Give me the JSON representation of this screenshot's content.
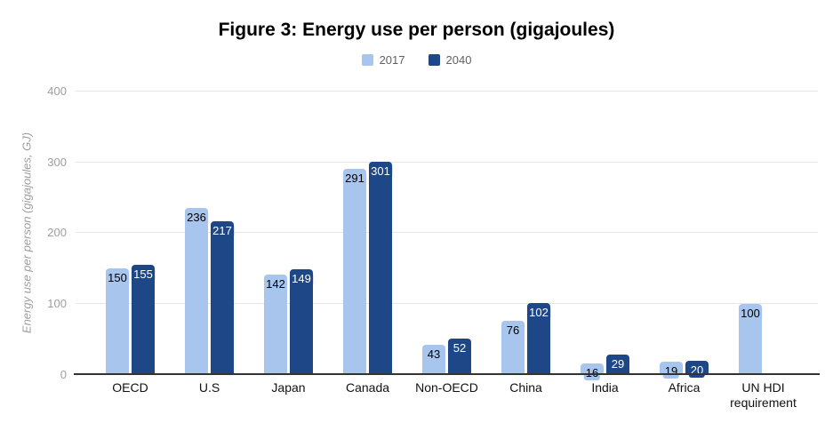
{
  "title": "Figure 3: Energy use per person (gigajoules)",
  "legend": {
    "items": [
      {
        "label": "2017",
        "color": "#a8c5ed"
      },
      {
        "label": "2040",
        "color": "#1e4787"
      }
    ]
  },
  "y_axis": {
    "title": "Energy use per person (gigajoules, GJ)",
    "ticks": [
      0,
      100,
      200,
      300,
      400
    ]
  },
  "colors": {
    "series_2017": "#a8c5ed",
    "series_2040": "#1e4787",
    "gridline": "#e6e6e6",
    "axis_line": "#333333",
    "tick_text": "#9e9e9e",
    "legend_text": "#616161"
  },
  "chart_data": {
    "type": "bar",
    "title": "Figure 3: Energy use per person (gigajoules)",
    "categories": [
      "OECD",
      "U.S",
      "Japan",
      "Canada",
      "Non-OECD",
      "China",
      "India",
      "Africa",
      "UN HDI requirement"
    ],
    "series": [
      {
        "name": "2017",
        "color": "#a8c5ed",
        "label_color": "#000000",
        "values": [
          150,
          236,
          142,
          291,
          43,
          76,
          16,
          19,
          100
        ]
      },
      {
        "name": "2040",
        "color": "#1e4787",
        "label_color": "#ffffff",
        "values": [
          155,
          217,
          149,
          301,
          52,
          102,
          29,
          20,
          null
        ]
      }
    ],
    "xlabel": "",
    "ylabel": "Energy use per person (gigajoules, GJ)",
    "ylim": [
      0,
      400
    ],
    "grid": true,
    "legend_position": "top",
    "value_labels": "inside-top, background matches bar color"
  }
}
